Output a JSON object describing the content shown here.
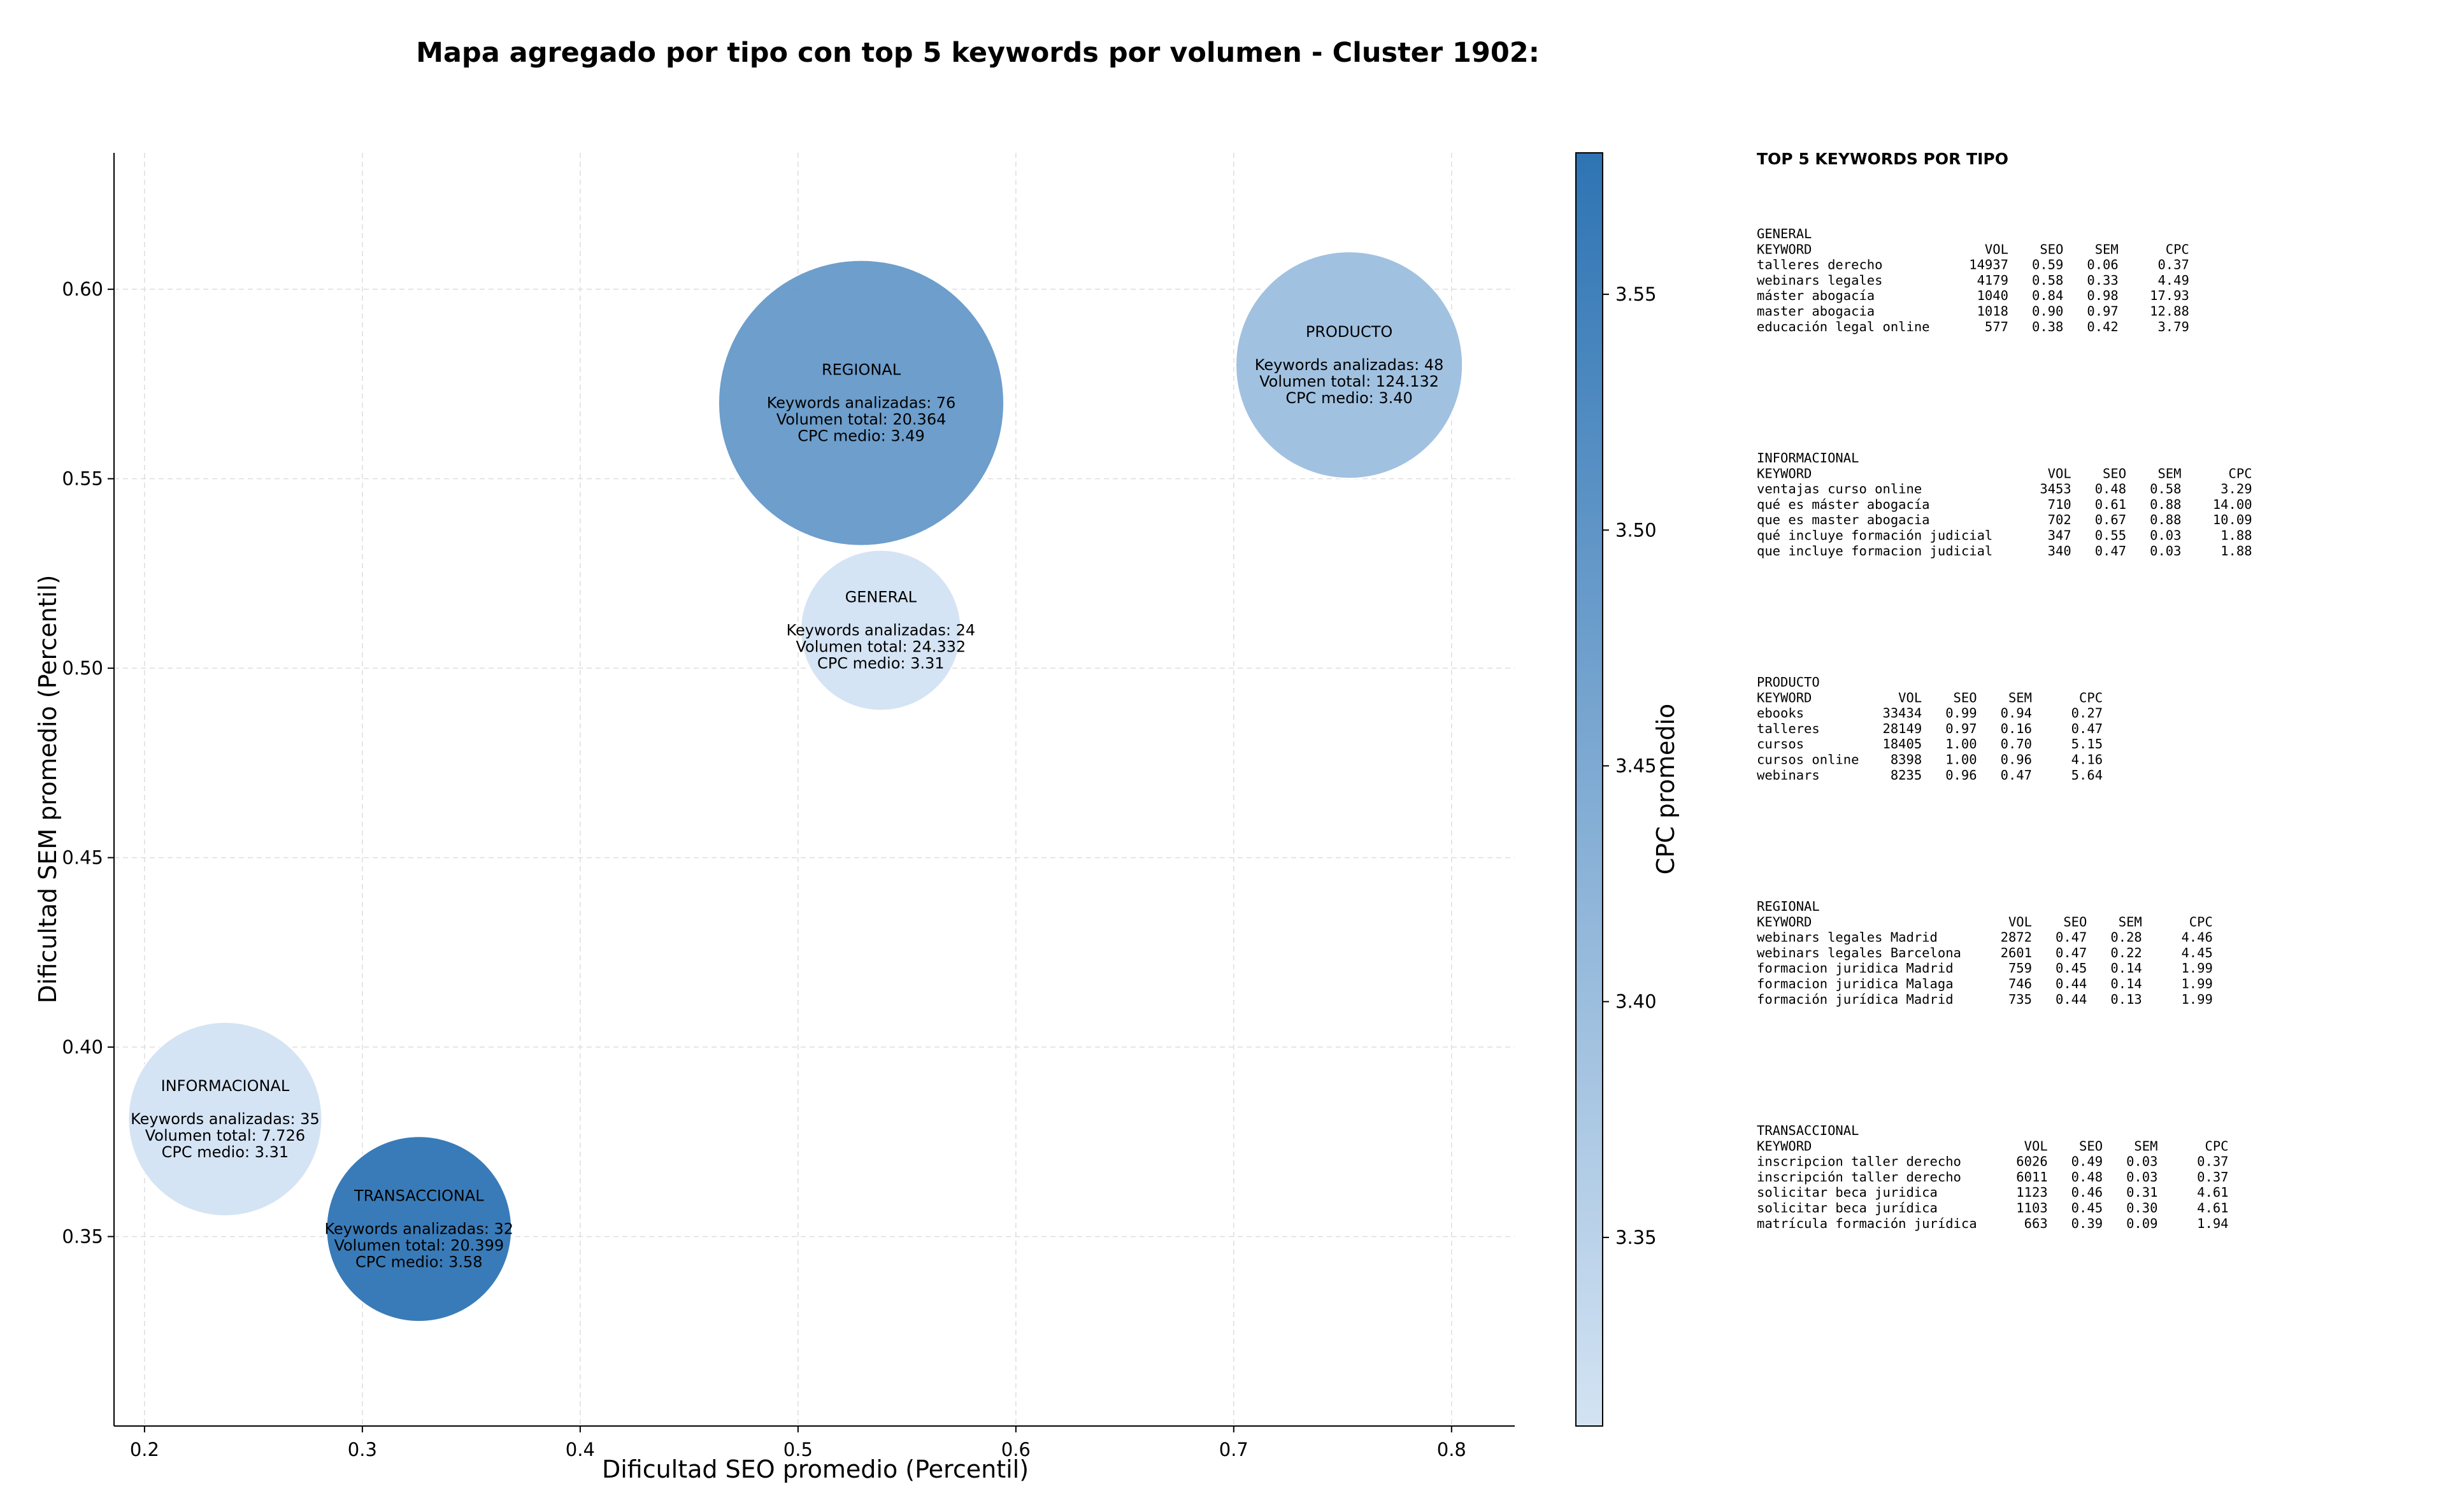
{
  "chart_data": {
    "type": "scatter",
    "title": "Mapa agregado por tipo con top 5 keywords por volumen - Cluster 1902:",
    "xlabel": "Dificultad SEO promedio (Percentil)",
    "ylabel": "Dificultad SEM promedio (Percentil)",
    "xlim": [
      0.186,
      0.829
    ],
    "ylim": [
      0.3,
      0.636
    ],
    "xticks": [
      0.2,
      0.3,
      0.4,
      0.5,
      0.6,
      0.7,
      0.8
    ],
    "xtick_labels": [
      "0.2",
      "0.3",
      "0.4",
      "0.5",
      "0.6",
      "0.7",
      "0.8"
    ],
    "yticks": [
      0.35,
      0.4,
      0.45,
      0.5,
      0.55,
      0.6
    ],
    "ytick_labels": [
      "0.35",
      "0.40",
      "0.45",
      "0.50",
      "0.55",
      "0.60"
    ],
    "grid": true,
    "colorbar": {
      "label": "CPC promedio",
      "range": [
        3.31,
        3.58
      ],
      "ticks": [
        3.35,
        3.4,
        3.45,
        3.5,
        3.55
      ],
      "tick_labels": [
        "3.35",
        "3.40",
        "3.45",
        "3.50",
        "3.55"
      ],
      "color_low": "#d3e3f3",
      "color_high": "#2e74b4"
    },
    "points": [
      {
        "name": "GENERAL",
        "x": 0.538,
        "y": 0.51,
        "cpc": 3.31,
        "volume": 24332,
        "keywords": 24,
        "lines": [
          "GENERAL",
          "",
          "Keywords analizadas: 24",
          "Volumen total: 24.332",
          "CPC medio: 3.31"
        ]
      },
      {
        "name": "INFORMACIONAL",
        "x": 0.237,
        "y": 0.381,
        "cpc": 3.31,
        "volume": 7726,
        "keywords": 35,
        "lines": [
          "INFORMACIONAL",
          "",
          "Keywords analizadas: 35",
          "Volumen total: 7.726",
          "CPC medio: 3.31"
        ]
      },
      {
        "name": "PRODUCTO",
        "x": 0.753,
        "y": 0.58,
        "cpc": 3.4,
        "volume": 124132,
        "keywords": 48,
        "lines": [
          "PRODUCTO",
          "",
          "Keywords analizadas: 48",
          "Volumen total: 124.132",
          "CPC medio: 3.40"
        ]
      },
      {
        "name": "REGIONAL",
        "x": 0.529,
        "y": 0.57,
        "cpc": 3.49,
        "volume": 20364,
        "keywords": 76,
        "lines": [
          "REGIONAL",
          "",
          "Keywords analizadas: 76",
          "Volumen total: 20.364",
          "CPC medio: 3.49"
        ]
      },
      {
        "name": "TRANSACCIONAL",
        "x": 0.326,
        "y": 0.352,
        "cpc": 3.58,
        "volume": 20399,
        "keywords": 32,
        "lines": [
          "TRANSACCIONAL",
          "",
          "Keywords analizadas: 32",
          "Volumen total: 20.399",
          "CPC medio: 3.58"
        ]
      }
    ]
  },
  "table": {
    "header": "TOP 5 KEYWORDS POR TIPO",
    "sections": [
      {
        "lines": [
          "GENERAL",
          "KEYWORD                      VOL    SEO    SEM      CPC",
          "talleres derecho           14937   0.59   0.06     0.37",
          "webinars legales            4179   0.58   0.33     4.49",
          "máster abogacía             1040   0.84   0.98    17.93",
          "master abogacia             1018   0.90   0.97    12.88",
          "educación legal online       577   0.38   0.42     3.79"
        ]
      },
      {
        "lines": [
          "INFORMACIONAL",
          "KEYWORD                              VOL    SEO    SEM      CPC",
          "ventajas curso online               3453   0.48   0.58     3.29",
          "qué es máster abogacía               710   0.61   0.88    14.00",
          "que es master abogacia               702   0.67   0.88    10.09",
          "qué incluye formación judicial       347   0.55   0.03     1.88",
          "que incluye formacion judicial       340   0.47   0.03     1.88"
        ]
      },
      {
        "lines": [
          "PRODUCTO",
          "KEYWORD           VOL    SEO    SEM      CPC",
          "ebooks          33434   0.99   0.94     0.27",
          "talleres        28149   0.97   0.16     0.47",
          "cursos          18405   1.00   0.70     5.15",
          "cursos online    8398   1.00   0.96     4.16",
          "webinars         8235   0.96   0.47     5.64"
        ]
      },
      {
        "lines": [
          "REGIONAL",
          "KEYWORD                         VOL    SEO    SEM      CPC",
          "webinars legales Madrid        2872   0.47   0.28     4.46",
          "webinars legales Barcelona     2601   0.47   0.22     4.45",
          "formacion juridica Madrid       759   0.45   0.14     1.99",
          "formacion juridica Malaga       746   0.44   0.14     1.99",
          "formación jurídica Madrid       735   0.44   0.13     1.99"
        ]
      },
      {
        "lines": [
          "TRANSACCIONAL",
          "KEYWORD                           VOL    SEO    SEM      CPC",
          "inscripcion taller derecho       6026   0.49   0.03     0.37",
          "inscripción taller derecho       6011   0.48   0.03     0.37",
          "solicitar beca juridica          1123   0.46   0.31     4.61",
          "solicitar beca jurídica          1103   0.45   0.30     4.61",
          "matrícula formación jurídica      663   0.39   0.09     1.94"
        ]
      }
    ]
  }
}
